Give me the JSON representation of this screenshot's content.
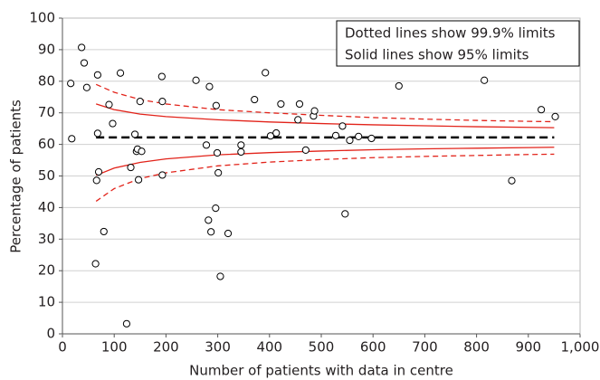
{
  "chart_data": {
    "type": "scatter",
    "xlabel": "Number of patients with data in centre",
    "ylabel": "Percentage of patients",
    "notes": [
      "Dotted lines show 99.9% limits",
      "Solid lines show 95% limits"
    ],
    "xlim": [
      0,
      1000
    ],
    "ylim": [
      0,
      100
    ],
    "xticks": [
      0,
      100,
      200,
      300,
      400,
      500,
      600,
      700,
      800,
      900,
      {
        "value": 1000,
        "label": "1,000"
      }
    ],
    "yticks": [
      0,
      10,
      20,
      30,
      40,
      50,
      60,
      70,
      80,
      90,
      100
    ],
    "grid": true,
    "points": {
      "color": "#000000",
      "x": [
        16,
        18,
        37,
        42,
        47,
        68,
        68,
        66,
        70,
        64,
        80,
        90,
        97,
        112,
        124,
        132,
        140,
        143,
        145,
        150,
        147,
        153,
        192,
        193,
        193,
        258,
        278,
        282,
        284,
        287,
        297,
        296,
        299,
        301,
        305,
        320,
        345,
        345,
        371,
        392,
        402,
        413,
        422,
        455,
        458,
        470,
        485,
        487,
        528,
        541,
        546,
        555,
        572,
        597,
        650,
        815,
        868,
        925,
        952
      ],
      "y": [
        79.3,
        61.8,
        90.7,
        85.8,
        78,
        82,
        63.5,
        48.6,
        51.3,
        22.2,
        32.4,
        72.6,
        66.6,
        82.6,
        3.2,
        52.7,
        63.2,
        57.8,
        58.5,
        73.6,
        48.8,
        57.8,
        81.5,
        73.6,
        50.3,
        80.3,
        59.8,
        36,
        78.3,
        32.3,
        72.3,
        39.8,
        57.3,
        51,
        18.2,
        31.8,
        59.8,
        57.6,
        74.2,
        82.7,
        62.7,
        63.6,
        72.8,
        67.8,
        72.8,
        58.2,
        69,
        70.6,
        62.8,
        65.8,
        38,
        61.3,
        62.5,
        61.9,
        78.5,
        80.3,
        48.5,
        71,
        68.8
      ]
    },
    "lines": [
      {
        "style": "dashed",
        "color": "#000000",
        "width": 2.5,
        "x": [
          65,
          950
        ],
        "values": [
          62.2,
          62.2
        ]
      },
      {
        "style": "solid",
        "color": "#e2231a",
        "width": 1.3,
        "x": [
          65,
          100,
          150,
          200,
          300,
          400,
          500,
          600,
          700,
          800,
          900,
          950
        ],
        "values": [
          72.8,
          71,
          69.6,
          68.8,
          67.8,
          67.1,
          66.6,
          66.2,
          65.9,
          65.6,
          65.4,
          65.3
        ]
      },
      {
        "style": "solid",
        "color": "#e2231a",
        "width": 1.3,
        "x": [
          65,
          100,
          150,
          200,
          300,
          400,
          500,
          600,
          700,
          800,
          900,
          950
        ],
        "values": [
          50.2,
          52.5,
          54.3,
          55.4,
          56.7,
          57.4,
          57.9,
          58.3,
          58.6,
          58.8,
          59,
          59.1
        ]
      },
      {
        "style": "dashed",
        "color": "#e2231a",
        "width": 1.3,
        "x": [
          65,
          100,
          150,
          200,
          300,
          400,
          500,
          600,
          700,
          800,
          900,
          950
        ],
        "values": [
          79,
          76.5,
          74.2,
          72.8,
          71,
          70,
          69.2,
          68.5,
          68,
          67.6,
          67.3,
          67.2
        ]
      },
      {
        "style": "dashed",
        "color": "#e2231a",
        "width": 1.3,
        "x": [
          65,
          100,
          150,
          200,
          300,
          400,
          500,
          600,
          700,
          800,
          900,
          950
        ],
        "values": [
          42,
          46,
          49.2,
          51,
          53.2,
          54.4,
          55.2,
          55.8,
          56.2,
          56.5,
          56.8,
          56.9
        ]
      }
    ]
  }
}
